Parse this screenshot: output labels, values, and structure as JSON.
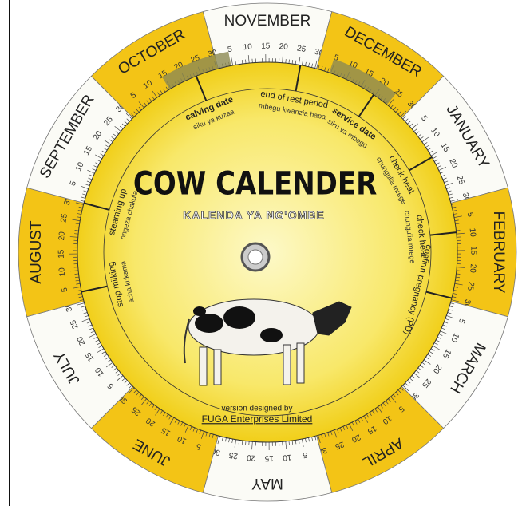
{
  "months": [
    "NOVEMBER",
    "DECEMBER",
    "JANUARY",
    "FEBRUARY",
    "MARCH",
    "APRIL",
    "MAY",
    "JUNE",
    "JULY",
    "AUGUST",
    "SEPTEMBER",
    "OCTOBER"
  ],
  "day_marks": [
    5,
    10,
    15,
    20,
    25,
    30
  ],
  "title": "COW CALENDER",
  "subtitle": "KALENDA YA NG'OMBE",
  "events": [
    {
      "label": "calving date",
      "translation": "siku ya kuzaa"
    },
    {
      "label": "end of rest period",
      "translation": "mbegu kwanzia hapa"
    },
    {
      "label": "service date",
      "translation": "siku ya mbegu"
    },
    {
      "label": "check heat",
      "translation": "chungulia mrege"
    },
    {
      "label": "check heat",
      "translation": "chungulia mrege"
    },
    {
      "label": "confirm pregnancy (PD)",
      "translation": ""
    },
    {
      "label": "steaming up",
      "translation": "ongeza chakula"
    },
    {
      "label": "stop milking",
      "translation": "acha kukama"
    }
  ],
  "credit": {
    "line": "version designed by",
    "company": "FUGA Enterprises Limited"
  }
}
